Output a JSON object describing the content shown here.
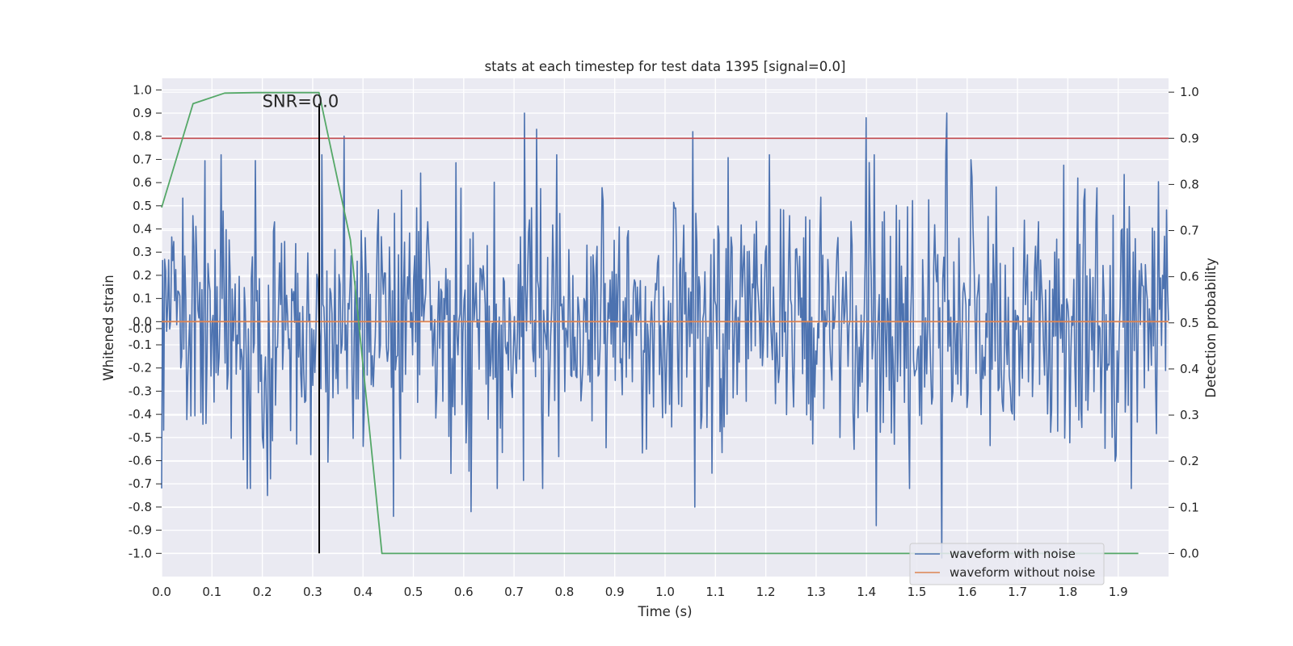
{
  "chart_data": {
    "type": "line",
    "title": "stats at each timestep for test data 1395 [signal=0.0]",
    "xlabel": "Time (s)",
    "ylabel": "Whitened strain",
    "y2label": "Detection probability",
    "xlim": [
      0.0,
      2.0
    ],
    "ylim": [
      -1.1,
      1.05
    ],
    "y2lim": [
      -0.05,
      1.03
    ],
    "xticks": [
      "0.0",
      "0.1",
      "0.2",
      "0.3",
      "0.4",
      "0.5",
      "0.6",
      "0.7",
      "0.8",
      "0.9",
      "1.0",
      "1.1",
      "1.2",
      "1.3",
      "1.4",
      "1.5",
      "1.6",
      "1.7",
      "1.8",
      "1.9"
    ],
    "xtick_values": [
      0.0,
      0.1,
      0.2,
      0.3,
      0.4,
      0.5,
      0.6,
      0.7,
      0.8,
      0.9,
      1.0,
      1.1,
      1.2,
      1.3,
      1.4,
      1.5,
      1.6,
      1.7,
      1.8,
      1.9
    ],
    "yticks": [
      "1.0",
      "0.9",
      "0.8",
      "0.7",
      "0.6",
      "0.5",
      "0.4",
      "0.3",
      "0.2",
      "0.1",
      "0.0",
      "-0.0",
      "-0.1",
      "-0.2",
      "-0.3",
      "-0.4",
      "-0.5",
      "-0.6",
      "-0.7",
      "-0.8",
      "-0.9",
      "-1.0"
    ],
    "ytick_values": [
      1.0,
      0.9,
      0.8,
      0.7,
      0.6,
      0.5,
      0.4,
      0.3,
      0.2,
      0.1,
      0.0,
      -0.03,
      -0.1,
      -0.2,
      -0.3,
      -0.4,
      -0.5,
      -0.6,
      -0.7,
      -0.8,
      -0.9,
      -1.0
    ],
    "y2ticks": [
      "1.0",
      "0.9",
      "0.8",
      "0.7",
      "0.6",
      "0.5",
      "0.4",
      "0.3",
      "0.2",
      "0.1",
      "0.0"
    ],
    "y2tick_values": [
      1.0,
      0.9,
      0.8,
      0.7,
      0.6,
      0.5,
      0.4,
      0.3,
      0.2,
      0.1,
      0.0
    ],
    "annotation": {
      "text": "SNR=0.0",
      "x": 0.2,
      "y": 0.95
    },
    "vline": {
      "x": 0.313,
      "ymin": -1.0,
      "ymax": 0.94,
      "color": "#000000"
    },
    "threshold": {
      "y2": 0.9,
      "color": "#c44e52"
    },
    "series": [
      {
        "name": "waveform with noise",
        "color": "#4c72b0",
        "axis": "left",
        "noise_seed": 1395,
        "n_samples": 1000,
        "x_range": [
          0.0,
          2.0
        ],
        "amplitude_sd": 0.28,
        "peaks": [
          {
            "x": 0.21,
            "y": 0.94
          },
          {
            "x": 0.363,
            "y": 0.8
          },
          {
            "x": 0.72,
            "y": 0.9
          },
          {
            "x": 0.745,
            "y": 0.83
          },
          {
            "x": 1.055,
            "y": 0.82
          },
          {
            "x": 1.4,
            "y": 0.88
          },
          {
            "x": 1.56,
            "y": 0.9
          },
          {
            "x": 0.46,
            "y": -0.84
          },
          {
            "x": 0.615,
            "y": -0.82
          },
          {
            "x": 1.42,
            "y": -0.88
          },
          {
            "x": 1.55,
            "y": -1.02
          },
          {
            "x": 0.21,
            "y": -0.75
          },
          {
            "x": 1.06,
            "y": -0.8
          }
        ]
      },
      {
        "name": "waveform without noise",
        "color": "#dd8452",
        "axis": "left",
        "x": [
          0.0,
          2.0
        ],
        "y": [
          0.0,
          0.0
        ]
      },
      {
        "name": "detection probability",
        "color": "#55a868",
        "axis": "right",
        "x": [
          0.0,
          0.0625,
          0.125,
          0.1875,
          0.25,
          0.3125,
          0.375,
          0.4375,
          0.5,
          0.75,
          1.0,
          1.25,
          1.5,
          1.75,
          1.94
        ],
        "y": [
          0.75,
          0.975,
          0.998,
          0.999,
          0.999,
          0.999,
          0.68,
          0.0,
          0.0,
          0.0,
          0.0,
          0.0,
          0.0,
          0.0,
          0.0
        ]
      }
    ],
    "legend": {
      "position": "lower-right",
      "entries": [
        {
          "label": "waveform with noise",
          "color": "#4c72b0"
        },
        {
          "label": "waveform without noise",
          "color": "#dd8452"
        }
      ]
    },
    "colors": {
      "axes_background": "#eaeaf2",
      "grid": "#ffffff",
      "text": "#262626"
    }
  }
}
